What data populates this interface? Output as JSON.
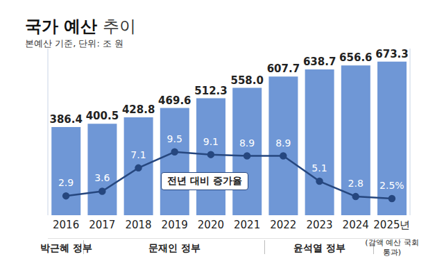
{
  "chart_data": {
    "type": "bar",
    "title": "국가 예산 추이",
    "subtitle": "본예산 기준, 단위: 조 원",
    "categories": [
      "2016",
      "2017",
      "2018",
      "2019",
      "2020",
      "2021",
      "2022",
      "2023",
      "2024",
      "2025년"
    ],
    "series": [
      {
        "type": "bar",
        "color": "#6f97d6",
        "values": [
          386.4,
          400.5,
          428.8,
          469.6,
          512.3,
          558.0,
          607.7,
          638.7,
          656.6,
          673.3
        ],
        "value_labels": [
          "386.4",
          "400.5",
          "428.8",
          "469.6",
          "512.3",
          "558.0",
          "607.7",
          "638.7",
          "656.6",
          "673.3"
        ]
      },
      {
        "name": "전년 대비 증가율",
        "type": "line",
        "axis": "y2",
        "color": "#26477f",
        "marker": "circle",
        "values": [
          2.9,
          3.6,
          7.1,
          9.5,
          9.1,
          8.9,
          8.9,
          5.1,
          2.8,
          2.5
        ],
        "value_labels": [
          "2.9",
          "3.6",
          "7.1",
          "9.5",
          "9.1",
          "8.9",
          "8.9",
          "5.1",
          "2.8",
          "2.5%"
        ]
      }
    ],
    "ylim": [
      0,
      730
    ],
    "yticks": [],
    "y2lim": [
      0,
      25
    ],
    "y2ticks": [],
    "tick_labels": "x",
    "grid": false,
    "data_labels": true,
    "annotations": [
      "박근혜 정부",
      "문재인 정부",
      "윤석열 정부",
      "(감액 예산 국회통과)"
    ]
  }
}
